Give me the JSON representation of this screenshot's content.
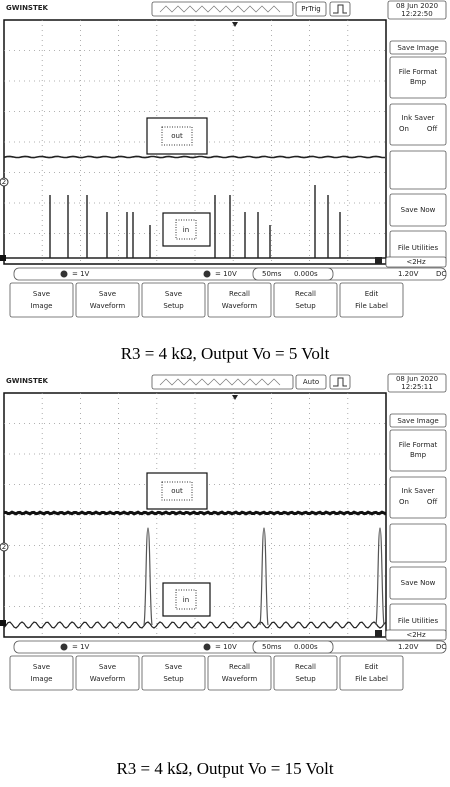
{
  "figures": [
    {
      "scope": {
        "brand": "GWINSTEK",
        "trigger": "PrTrig",
        "date": "08 Jun 2020",
        "time": "12:22:50",
        "menu": {
          "save_image": "Save Image",
          "file_format": "File Format",
          "file_format_value": "Bmp",
          "ink_saver": "Ink Saver",
          "ink_on": "On",
          "ink_off": "Off",
          "save_now": "Save Now",
          "file_utilities": "File Utilities"
        },
        "labels": {
          "out": "out",
          "in": "in",
          "ch2": "2",
          "ch1": "1"
        },
        "status": {
          "ch2_scale": "= 1V",
          "ch1_scale": "= 10V",
          "timebase": "50ms",
          "position": "0.000s",
          "freq": "<2Hz",
          "trigger_level": "1.20V",
          "coupling": "DC"
        },
        "buttons": [
          [
            "Save",
            "Image"
          ],
          [
            "Save",
            "Waveform"
          ],
          [
            "Save",
            "Setup"
          ],
          [
            "Recall",
            "Waveform"
          ],
          [
            "Recall",
            "Setup"
          ],
          [
            "Edit",
            "File Label"
          ]
        ]
      },
      "caption": "R3 = 4 kΩ, Output Vo = 5 Volt"
    },
    {
      "scope": {
        "brand": "GWINSTEK",
        "trigger": "Auto",
        "date": "08 Jun 2020",
        "time": "12:25:11",
        "menu": {
          "save_image": "Save Image",
          "file_format": "File Format",
          "file_format_value": "Bmp",
          "ink_saver": "Ink Saver",
          "ink_on": "On",
          "ink_off": "Off",
          "save_now": "Save Now",
          "file_utilities": "File Utilities"
        },
        "labels": {
          "out": "out",
          "in": "in",
          "ch2": "2",
          "ch1": "1"
        },
        "status": {
          "ch2_scale": "= 1V",
          "ch1_scale": "= 10V",
          "timebase": "50ms",
          "position": "0.000s",
          "freq": "<2Hz",
          "trigger_level": "1.20V",
          "coupling": "DC"
        },
        "buttons": [
          [
            "Save",
            "Image"
          ],
          [
            "Save",
            "Waveform"
          ],
          [
            "Save",
            "Setup"
          ],
          [
            "Recall",
            "Waveform"
          ],
          [
            "Recall",
            "Setup"
          ],
          [
            "Edit",
            "File Label"
          ]
        ]
      },
      "caption": "R3 = 4 kΩ, Output Vo = 15 Volt"
    }
  ]
}
